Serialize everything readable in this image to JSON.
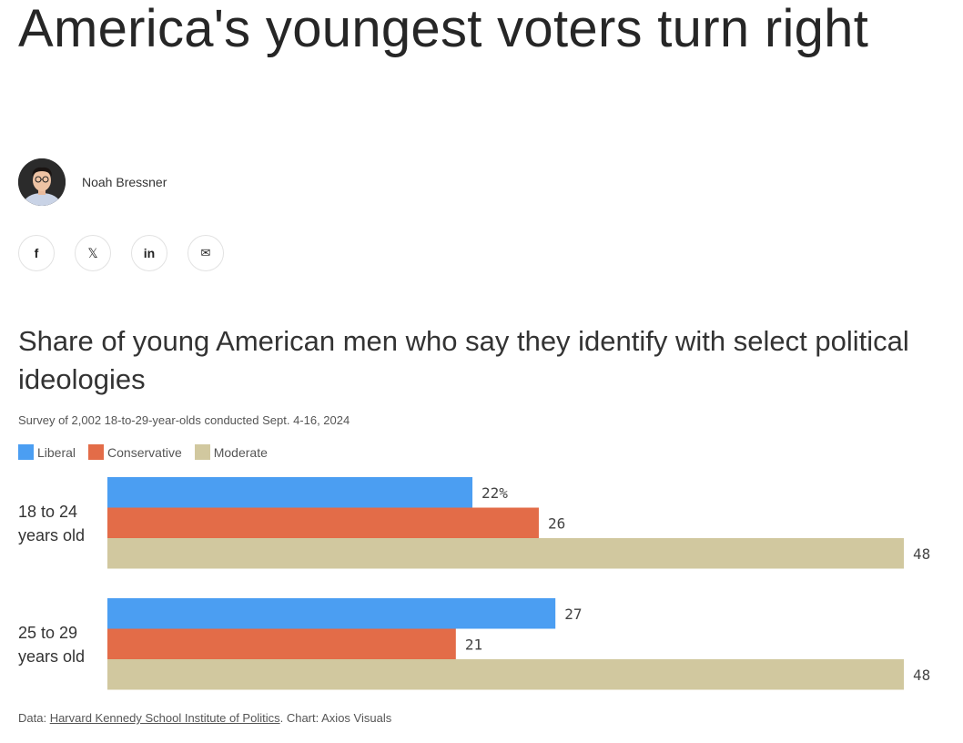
{
  "article": {
    "headline": "America's youngest voters turn right",
    "author": "Noah Bressner"
  },
  "share": {
    "buttons": [
      {
        "name": "facebook",
        "glyph": "f"
      },
      {
        "name": "x",
        "glyph": "𝕏"
      },
      {
        "name": "linkedin",
        "glyph": "in"
      },
      {
        "name": "email",
        "glyph": "✉"
      }
    ]
  },
  "chart_data": {
    "type": "bar",
    "orientation": "horizontal",
    "title": "Share of young American men who say they identify with select political ideologies",
    "subtitle": "Survey of 2,002 18-to-29-year-olds conducted Sept. 4-16, 2024",
    "categories": [
      "18 to 24 years old",
      "25 to 29 years old"
    ],
    "series": [
      {
        "name": "Liberal",
        "color": "#4b9ef2",
        "values": [
          22,
          27
        ],
        "labels": [
          "22%",
          "27"
        ]
      },
      {
        "name": "Conservative",
        "color": "#e36c48",
        "values": [
          26,
          21
        ],
        "labels": [
          "26",
          "21"
        ]
      },
      {
        "name": "Moderate",
        "color": "#d1c89f",
        "values": [
          48,
          48
        ],
        "labels": [
          "48",
          "48"
        ]
      }
    ],
    "xlim": [
      0,
      48
    ],
    "legend_position": "top-left",
    "grid": false
  },
  "footer": {
    "data_prefix": "Data: ",
    "source": "Harvard Kennedy School Institute of Politics",
    "credit": ". Chart: Axios Visuals"
  }
}
